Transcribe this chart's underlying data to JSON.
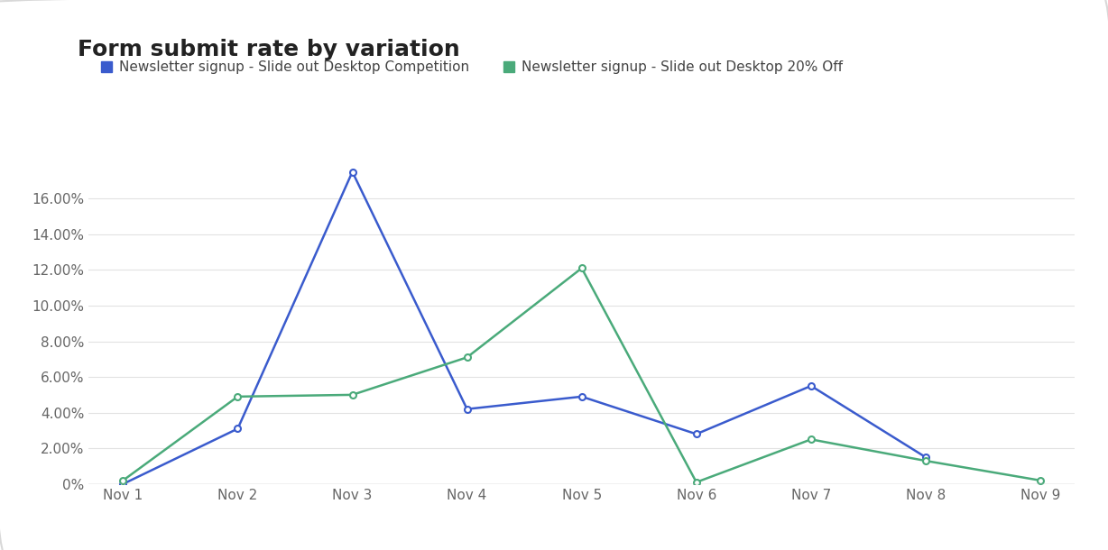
{
  "title": "Form submit rate by variation",
  "x_labels": [
    "Nov 1",
    "Nov 2",
    "Nov 3",
    "Nov 4",
    "Nov 5",
    "Nov 6",
    "Nov 7",
    "Nov 8",
    "Nov 9"
  ],
  "series": [
    {
      "name": "Newsletter signup - Slide out Desktop Competition",
      "color": "#3a5bcd",
      "values": [
        0.0,
        0.031,
        0.175,
        0.042,
        0.049,
        0.028,
        0.055,
        0.015,
        null
      ]
    },
    {
      "name": "Newsletter signup - Slide out Desktop 20% Off",
      "color": "#4aaa7a",
      "values": [
        0.002,
        0.049,
        0.05,
        0.071,
        0.121,
        0.001,
        0.025,
        0.013,
        0.002
      ]
    }
  ],
  "ylim": [
    0,
    0.185
  ],
  "yticks": [
    0.0,
    0.02,
    0.04,
    0.06,
    0.08,
    0.1,
    0.12,
    0.14,
    0.16
  ],
  "background_color": "#ffffff",
  "grid_color": "#e2e2e2",
  "title_fontsize": 18,
  "legend_fontsize": 11,
  "tick_fontsize": 11
}
